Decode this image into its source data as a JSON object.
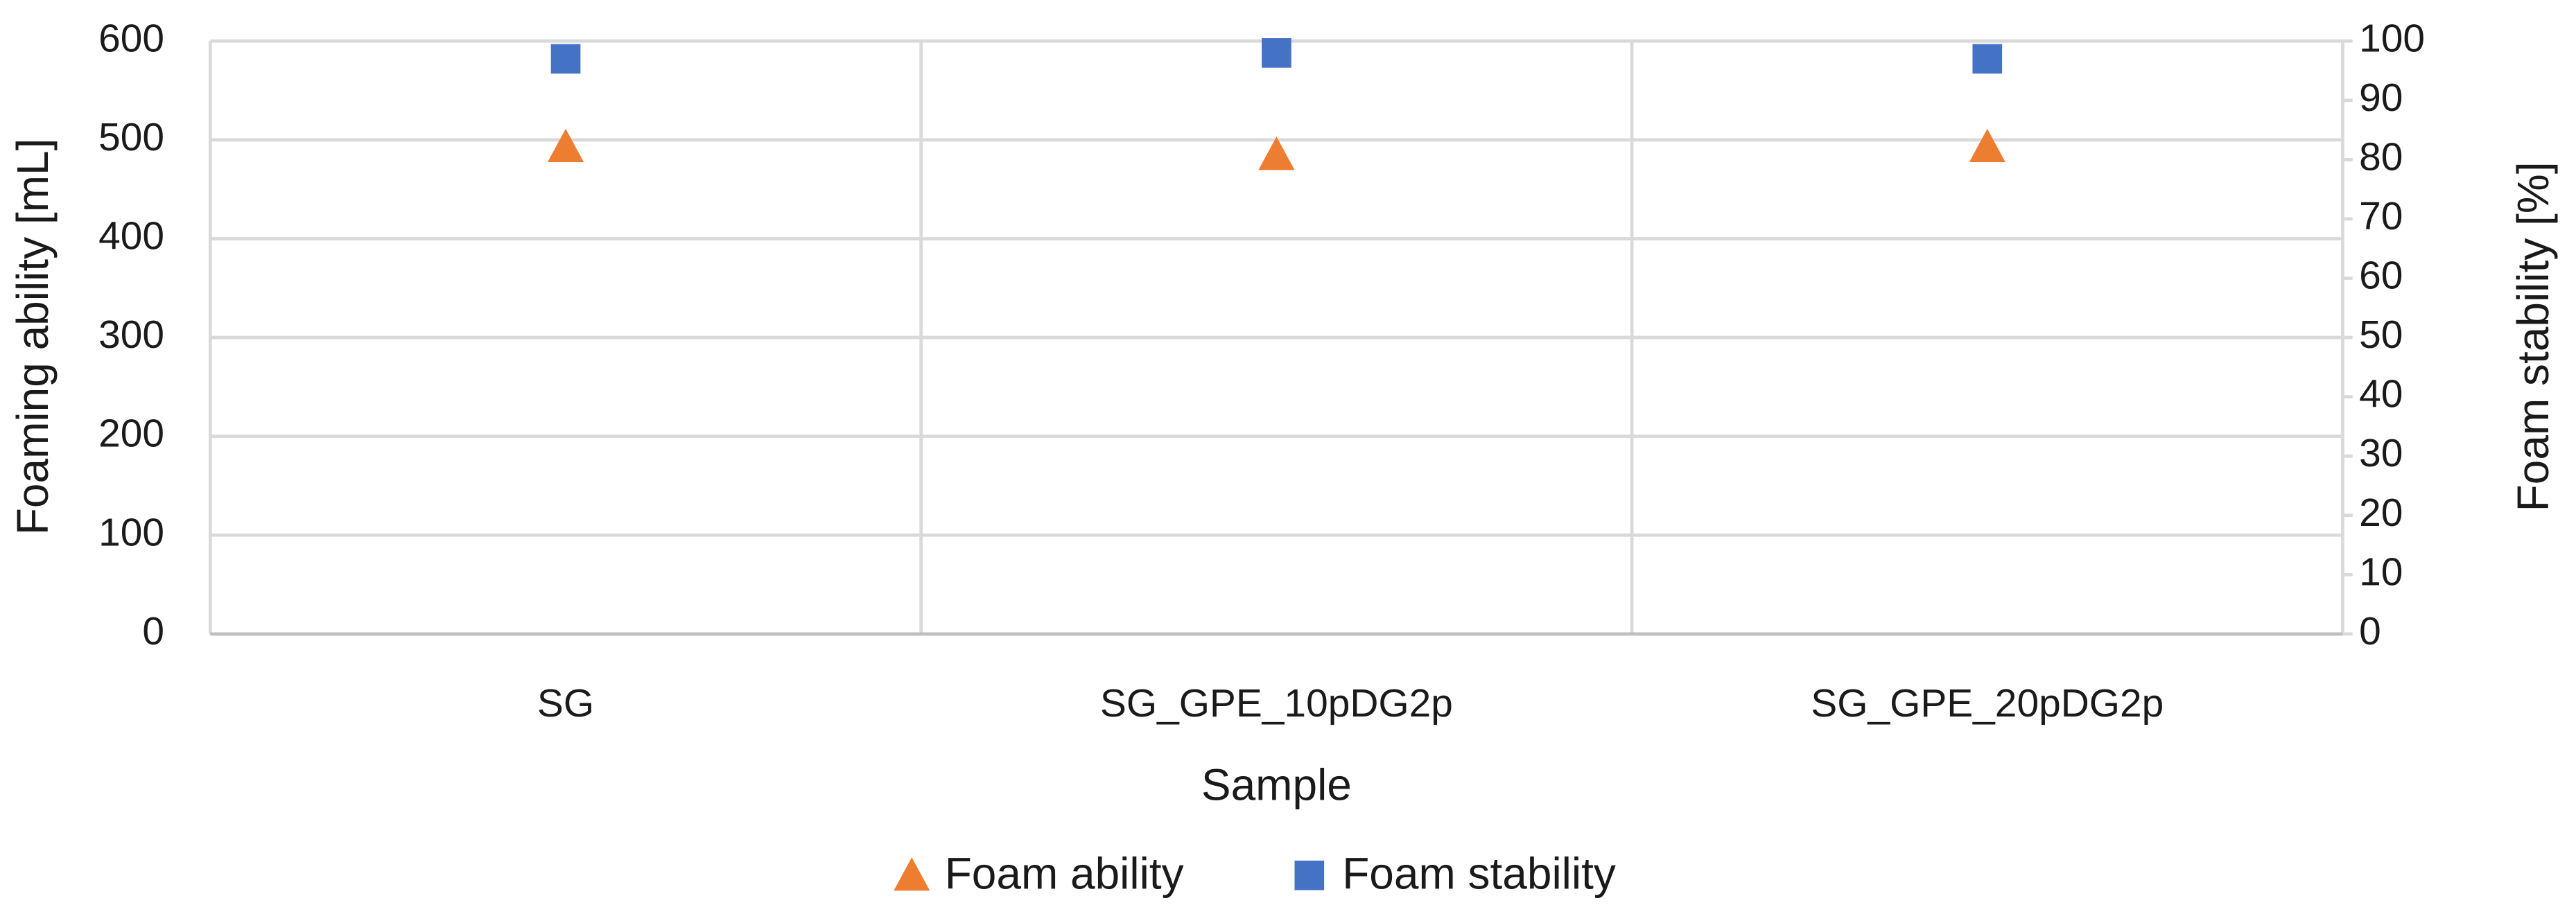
{
  "chart_data": {
    "type": "scatter",
    "x_label": "Sample",
    "y_label": "Foaming ability [mL]",
    "y2_label": "Foam stability [%]",
    "categories": [
      "SG",
      "SG_GPE_10pDG2p",
      "SG_GPE_20pDG2p"
    ],
    "series": [
      {
        "name": "Foam ability",
        "color": "#ed7d31",
        "marker": "triangle",
        "values": [
          493,
          485,
          493
        ]
      },
      {
        "name": "Foam stability",
        "color": "#4472c4",
        "marker": "square",
        "axis": "y2",
        "values": [
          97,
          98,
          97
        ]
      }
    ],
    "ylim": [
      0,
      600
    ],
    "yticks": [
      0,
      100,
      200,
      300,
      400,
      500,
      600
    ],
    "y2lim": [
      0,
      100
    ],
    "y2ticks": [
      0,
      10,
      20,
      30,
      40,
      50,
      60,
      70,
      80,
      90,
      100
    ],
    "grid": true,
    "legend": "bottom"
  }
}
